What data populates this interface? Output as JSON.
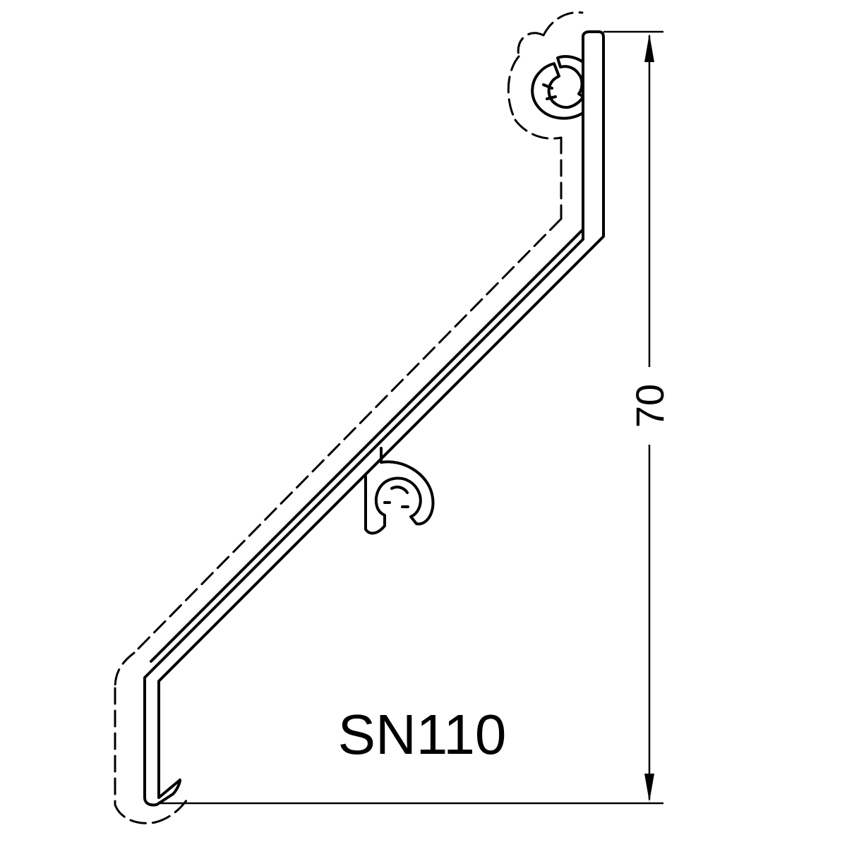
{
  "drawing": {
    "dimension": {
      "value": "70"
    },
    "model_label": "SN110",
    "colors": {
      "stroke": "#000000",
      "background": "#ffffff"
    }
  }
}
